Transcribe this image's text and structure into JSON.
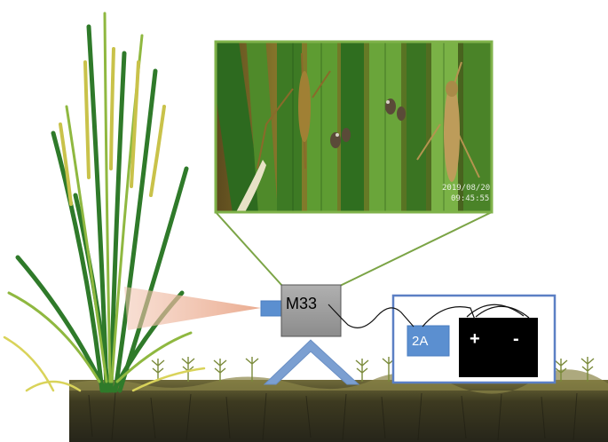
{
  "camera": {
    "label": "M33"
  },
  "charger": {
    "label": "2A"
  },
  "battery": {
    "positive": "+",
    "negative": "-"
  },
  "photo": {
    "timestamp_line1": "2019/08/20",
    "timestamp_line2": "09:45:55"
  },
  "colors": {
    "photo_border": "#7fb24a",
    "connector_lines": "#7ba446",
    "camera_body": "#9a9a9a",
    "lens": "#5b8fd0",
    "tripod": "#7b9fd1",
    "power_box_border": "#5b7fc4",
    "charger": "#5b8fd0",
    "battery": "#000000",
    "view_cone": "#e9a78a",
    "soil": "#3d3a20"
  }
}
